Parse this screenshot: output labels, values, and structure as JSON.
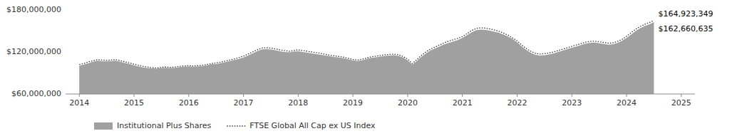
{
  "chart_data": {
    "type": "line",
    "x": [
      2014.0,
      2014.083,
      2014.167,
      2014.25,
      2014.333,
      2014.417,
      2014.5,
      2014.583,
      2014.667,
      2014.75,
      2014.833,
      2014.917,
      2015.0,
      2015.083,
      2015.167,
      2015.25,
      2015.333,
      2015.417,
      2015.5,
      2015.583,
      2015.667,
      2015.75,
      2015.833,
      2015.917,
      2016.0,
      2016.083,
      2016.167,
      2016.25,
      2016.333,
      2016.417,
      2016.5,
      2016.583,
      2016.667,
      2016.75,
      2016.833,
      2016.917,
      2017.0,
      2017.083,
      2017.167,
      2017.25,
      2017.333,
      2017.417,
      2017.5,
      2017.583,
      2017.667,
      2017.75,
      2017.833,
      2017.917,
      2018.0,
      2018.083,
      2018.167,
      2018.25,
      2018.333,
      2018.417,
      2018.5,
      2018.583,
      2018.667,
      2018.75,
      2018.833,
      2018.917,
      2019.0,
      2019.083,
      2019.167,
      2019.25,
      2019.333,
      2019.417,
      2019.5,
      2019.583,
      2019.667,
      2019.75,
      2019.833,
      2019.917,
      2020.0,
      2020.083,
      2020.167,
      2020.25,
      2020.333,
      2020.417,
      2020.5,
      2020.583,
      2020.667,
      2020.75,
      2020.833,
      2020.917,
      2021.0,
      2021.083,
      2021.167,
      2021.25,
      2021.333,
      2021.417,
      2021.5,
      2021.583,
      2021.667,
      2021.75,
      2021.833,
      2021.917,
      2022.0,
      2022.083,
      2022.167,
      2022.25,
      2022.333,
      2022.417,
      2022.5,
      2022.583,
      2022.667,
      2022.75,
      2022.833,
      2022.917,
      2023.0,
      2023.083,
      2023.167,
      2023.25,
      2023.333,
      2023.417,
      2023.5,
      2023.583,
      2023.667,
      2023.75,
      2023.833,
      2023.917,
      2024.0,
      2024.083,
      2024.167,
      2024.25,
      2024.333,
      2024.417,
      2024.5
    ],
    "series": [
      {
        "name": "Institutional Plus Shares",
        "type": "area",
        "color": "#a0a0a0",
        "values": [
          100500000,
          102000000,
          104000000,
          106000000,
          107500000,
          107000000,
          106500000,
          107000000,
          107500000,
          106000000,
          104500000,
          103000000,
          101000000,
          99500000,
          98000000,
          97000000,
          96500000,
          96000000,
          97000000,
          97500000,
          97000000,
          97500000,
          98500000,
          99000000,
          99500000,
          99000000,
          99500000,
          100000000,
          101000000,
          102500000,
          103000000,
          104000000,
          105500000,
          107000000,
          108500000,
          110000000,
          112000000,
          115000000,
          118000000,
          121000000,
          123500000,
          124000000,
          123500000,
          122500000,
          121000000,
          120000000,
          119500000,
          120500000,
          121000000,
          120000000,
          119000000,
          118000000,
          117000000,
          116000000,
          115000000,
          114000000,
          113000000,
          112000000,
          111000000,
          109500000,
          108000000,
          107000000,
          108000000,
          110000000,
          111500000,
          112500000,
          113500000,
          114500000,
          115000000,
          115500000,
          114500000,
          112000000,
          108000000,
          102000000,
          107000000,
          113000000,
          118000000,
          122000000,
          125000000,
          128000000,
          131000000,
          133000000,
          135000000,
          137000000,
          140000000,
          144000000,
          148000000,
          151000000,
          152000000,
          151500000,
          150500000,
          149000000,
          147500000,
          145000000,
          142000000,
          138500000,
          134000000,
          128000000,
          123000000,
          119000000,
          116000000,
          115000000,
          115500000,
          116500000,
          118000000,
          120000000,
          122000000,
          124000000,
          126000000,
          128000000,
          130000000,
          132000000,
          133000000,
          133500000,
          132500000,
          131500000,
          130500000,
          131000000,
          133000000,
          136000000,
          140000000,
          145000000,
          150000000,
          154000000,
          157000000,
          159500000,
          162660635
        ]
      },
      {
        "name": "FTSE Global All Cap ex US Index",
        "type": "line",
        "color": "#333333",
        "line_style": "dotted",
        "values": [
          102000000,
          103500000,
          106000000,
          107500000,
          109000000,
          108500000,
          108000000,
          108500000,
          109000000,
          107500000,
          106000000,
          104500000,
          102500000,
          101000000,
          99500000,
          98500000,
          97500000,
          97000000,
          98000000,
          98500000,
          98000000,
          98500000,
          99500000,
          100000000,
          100500000,
          100000000,
          100500000,
          101000000,
          102000000,
          103500000,
          104500000,
          105500000,
          107000000,
          108500000,
          110000000,
          112000000,
          114000000,
          117000000,
          120000000,
          123000000,
          125500000,
          126000000,
          125500000,
          124500000,
          123000000,
          122000000,
          121000000,
          122000000,
          123000000,
          122000000,
          121000000,
          120000000,
          119000000,
          118000000,
          116500000,
          115500000,
          114500000,
          113500000,
          112500000,
          111000000,
          109500000,
          108500000,
          109500000,
          111500000,
          113000000,
          114000000,
          115000000,
          116000000,
          116500000,
          117000000,
          116000000,
          113500000,
          110000000,
          103500000,
          109000000,
          115000000,
          120000000,
          124000000,
          127000000,
          130000000,
          133000000,
          135500000,
          137500000,
          139500000,
          142000000,
          146000000,
          150500000,
          153500000,
          154500000,
          154000000,
          153000000,
          151500000,
          149500000,
          147000000,
          144000000,
          140000000,
          136000000,
          130000000,
          125000000,
          121000000,
          118000000,
          117000000,
          117500000,
          118500000,
          120000000,
          122000000,
          124000000,
          126000000,
          128000000,
          130000000,
          132000000,
          134000000,
          135000000,
          135500000,
          134500000,
          133500000,
          132500000,
          133000000,
          135000000,
          138000000,
          142500000,
          147500000,
          152500000,
          156500000,
          159500000,
          162000000,
          164923349
        ]
      }
    ],
    "xlim": [
      2013.75,
      2025.25
    ],
    "xticks": [
      2014,
      2015,
      2016,
      2017,
      2018,
      2019,
      2020,
      2021,
      2022,
      2023,
      2024,
      2025
    ],
    "ylim": [
      60000000,
      180000000
    ],
    "yticks": [
      {
        "value": 60000000,
        "label": "$60,000,000"
      },
      {
        "value": 120000000,
        "label": "$120,000,000"
      },
      {
        "value": 180000000,
        "label": "$180,000,000"
      }
    ],
    "annotations": [
      {
        "text": "$164,923,349",
        "x": 2024.5,
        "y": 164923349
      },
      {
        "text": "$162,660,635",
        "x": 2024.5,
        "y": 162660635
      }
    ],
    "grid": false,
    "legend": "bottom"
  }
}
